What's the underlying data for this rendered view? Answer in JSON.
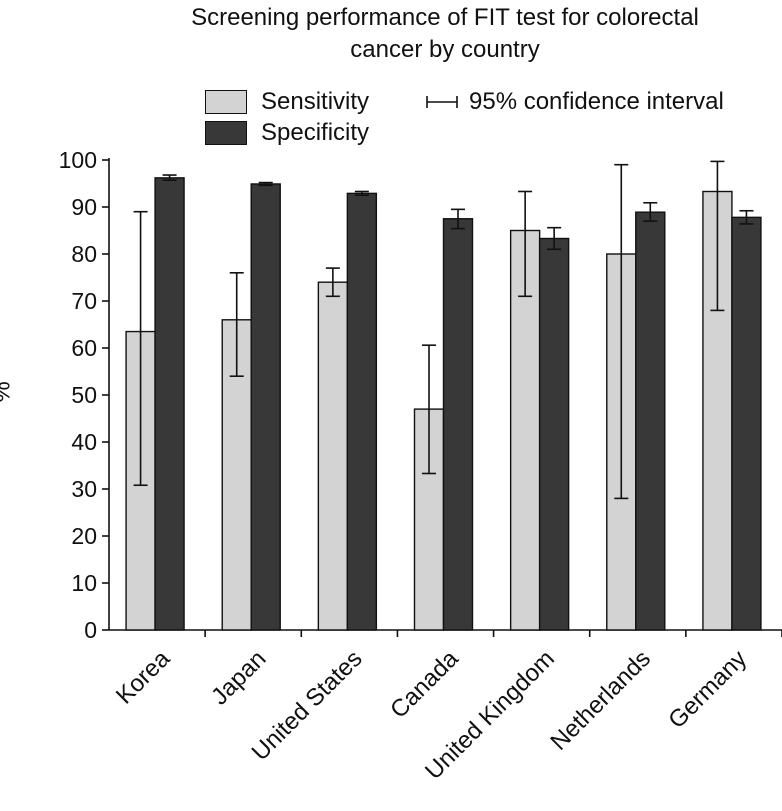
{
  "chart_data": {
    "type": "bar",
    "title_line1": "Screening performance of FIT test for colorectal",
    "title_line2": "cancer by country",
    "ylabel": "%",
    "xlabel": "",
    "ylim": [
      0,
      100
    ],
    "yticks": [
      0,
      10,
      20,
      30,
      40,
      50,
      60,
      70,
      80,
      90,
      100
    ],
    "categories": [
      "Korea",
      "Japan",
      "United States",
      "Canada",
      "United Kingdom",
      "Netherlands",
      "Germany"
    ],
    "series": [
      {
        "name": "Sensitivity",
        "color": "#d3d3d3",
        "values": [
          63.5,
          66,
          74,
          47,
          85,
          80,
          93.3
        ],
        "ci_low": [
          30.8,
          54,
          71,
          33.3,
          71,
          28,
          68
        ],
        "ci_high": [
          89,
          76,
          77,
          60.6,
          93.3,
          99,
          99.7
        ]
      },
      {
        "name": "Specificity",
        "color": "#383838",
        "values": [
          96.2,
          94.9,
          92.9,
          87.5,
          83.3,
          88.9,
          87.8
        ],
        "ci_low": [
          95.7,
          94.6,
          92.5,
          85.4,
          81,
          87,
          86.4
        ],
        "ci_high": [
          96.8,
          95.2,
          93.3,
          89.5,
          85.6,
          90.9,
          89.2
        ]
      }
    ],
    "legend": {
      "sensitivity": "Sensitivity",
      "specificity": "Specificity",
      "ci": "95% confidence interval"
    }
  }
}
